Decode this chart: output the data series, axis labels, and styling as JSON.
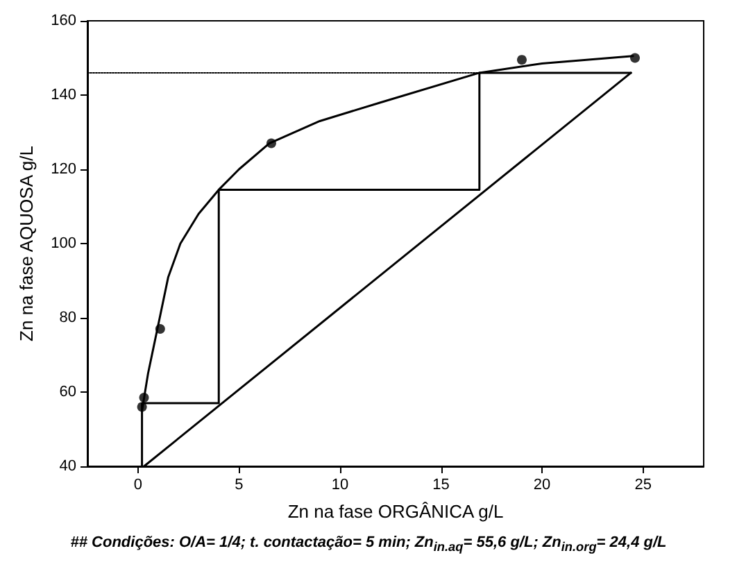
{
  "chart_data": {
    "type": "line",
    "xlabel": "Zn na fase ORGÂNICA g/L",
    "ylabel": "Zn na fase AQUOSA g/L",
    "annotations": [
      "## Condições: O/A= 1/4; t. contactação= 5 min; Zn$_{in.aq}$= 55,6 g/L; Zn$_{in.org}$= 24,4 g/L"
    ],
    "xlim": [
      -2.5,
      28
    ],
    "xticks": [
      0,
      5,
      10,
      15,
      20,
      25
    ],
    "ylim": [
      40,
      160
    ],
    "yticks": [
      40,
      60,
      80,
      100,
      120,
      140,
      160
    ],
    "grid": false,
    "series": [
      {
        "type": "scatter",
        "marker": "circle",
        "color": "#000000",
        "x": [
          0.2,
          0.3,
          1.1,
          6.6,
          19.0,
          24.6
        ],
        "values": [
          56,
          58.5,
          77,
          127,
          149.5,
          150
        ]
      },
      {
        "marker": "none",
        "line_style": "solid",
        "color": "#000000",
        "x": [
          0.2,
          0.5,
          1,
          1.5,
          2.1,
          3,
          4,
          5,
          6.5,
          9,
          12,
          16.9,
          20,
          24.5
        ],
        "values": [
          55,
          65,
          78,
          91,
          100,
          108,
          114.5,
          120,
          127,
          133,
          138,
          146,
          148.5,
          150.5
        ]
      },
      {
        "marker": "none",
        "line_style": "solid",
        "color": "#000000",
        "x": [
          0.3,
          24.4
        ],
        "values": [
          40,
          146
        ]
      },
      {
        "marker": "none",
        "line_style": "solid",
        "color": "#000000",
        "x": [
          24.4,
          16.9,
          16.9,
          4.0,
          4.0,
          0.2,
          0.2
        ],
        "values": [
          146,
          146,
          114.5,
          114.5,
          57,
          57,
          40
        ]
      },
      {
        "marker": "none",
        "line_style": "dotted",
        "color": "#000000",
        "x": [
          -2.5,
          16.9
        ],
        "values": [
          146,
          146
        ]
      }
    ]
  }
}
